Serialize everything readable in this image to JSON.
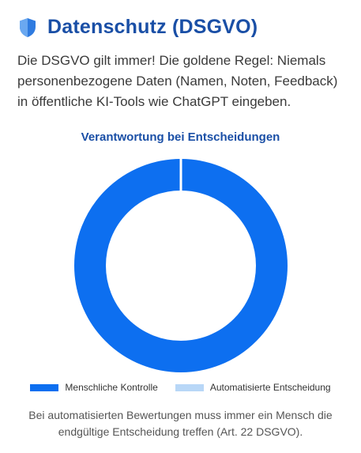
{
  "header": {
    "title": "Datenschutz (DSGVO)",
    "icon": "shield-icon"
  },
  "intro": "Die DSGVO gilt immer! Die goldene Regel: Niemals personenbezogene Daten (Namen, Noten, Feedback) in öffentliche KI-Tools wie ChatGPT eingeben.",
  "colors": {
    "title": "#1a4fa6",
    "primary_slice": "#0d6ff0",
    "secondary_slice": "#b8d7f7"
  },
  "chart_data": {
    "type": "pie",
    "title": "Verantwortung bei Entscheidungen",
    "labels": [
      "Menschliche Kontrolle",
      "Automatisierte Entscheidung"
    ],
    "values": [
      100,
      0
    ],
    "colors": [
      "#0d6ff0",
      "#b8d7f7"
    ],
    "legend_position": "bottom",
    "donut": true
  },
  "footnote": "Bei automatisierten Bewertungen muss immer ein Mensch die endgültige Entscheidung treffen (Art. 22 DSGVO)."
}
